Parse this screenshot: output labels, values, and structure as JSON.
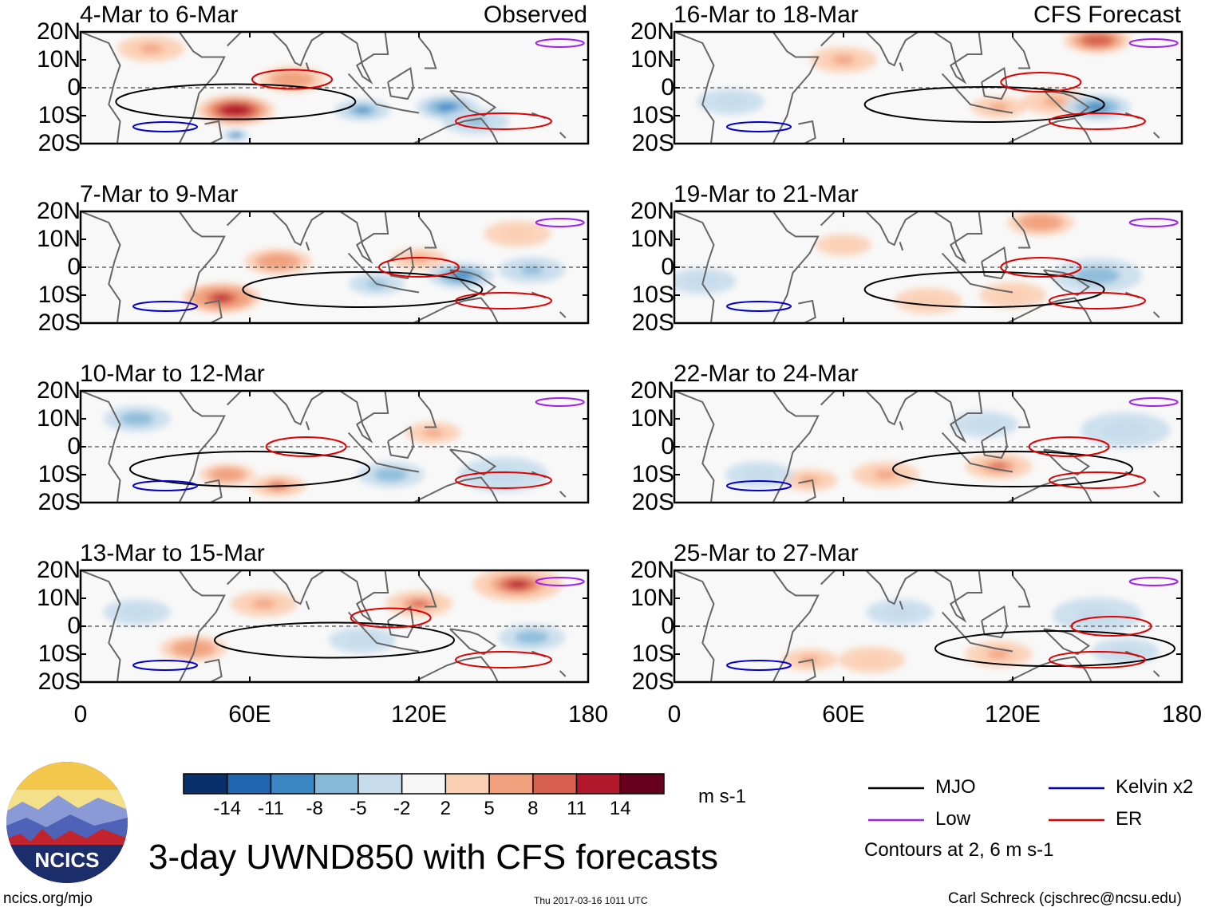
{
  "figure": {
    "title": "3-day UWND850 with CFS forecasts",
    "url": "ncics.org/mjo",
    "timestamp": "Thu 2017-03-16 1011 UTC",
    "author": "Carl Schreck (cjschrec@ncsu.edu)",
    "logo_text": "NCICS",
    "units": "m s-1",
    "contour_note": "Contours at 2, 6 m s-1"
  },
  "colorbar": {
    "labels": [
      "-14",
      "-11",
      "-8",
      "-5",
      "-2",
      "2",
      "5",
      "8",
      "11",
      "14"
    ],
    "colors": [
      "#08306b",
      "#1f66b0",
      "#3a87c4",
      "#86b8d8",
      "#c6dcec",
      "#f7f7f7",
      "#fbcfb3",
      "#f1a07d",
      "#d6604d",
      "#b2182b",
      "#67001f"
    ]
  },
  "legend": [
    {
      "label": "MJO",
      "color": "#000000"
    },
    {
      "label": "Kelvin x2",
      "color": "#0000cc"
    },
    {
      "label": "Low",
      "color": "#a020f0"
    },
    {
      "label": "ER",
      "color": "#e00000"
    }
  ],
  "chart_data": {
    "type": "heatmap",
    "variable": "850-hPa zonal wind anomaly (3-day mean)",
    "x_ticks": [
      "0",
      "60E",
      "120E",
      "180"
    ],
    "x_values": [
      0,
      60,
      120,
      180
    ],
    "y_ticks": [
      "20N",
      "10N",
      "0",
      "10S",
      "20S"
    ],
    "y_values": [
      20,
      10,
      0,
      -10,
      -20
    ],
    "xlim": [
      0,
      180
    ],
    "ylim": [
      -20,
      20
    ],
    "contour_levels": [
      2,
      6
    ],
    "panels": [
      {
        "period": "4-Mar to 6-Mar",
        "column": "Observed",
        "tag": "Observed"
      },
      {
        "period": "7-Mar to 9-Mar",
        "column": "Observed",
        "tag": ""
      },
      {
        "period": "10-Mar to 12-Mar",
        "column": "Observed",
        "tag": ""
      },
      {
        "period": "13-Mar to 15-Mar",
        "column": "Observed",
        "tag": ""
      },
      {
        "period": "16-Mar to 18-Mar",
        "column": "CFS Forecast",
        "tag": "CFS Forecast"
      },
      {
        "period": "19-Mar to 21-Mar",
        "column": "CFS Forecast",
        "tag": ""
      },
      {
        "period": "22-Mar to 24-Mar",
        "column": "CFS Forecast",
        "tag": ""
      },
      {
        "period": "25-Mar to 27-Mar",
        "column": "CFS Forecast",
        "tag": ""
      }
    ],
    "anomaly_blobs": [
      [
        [
          55,
          -8,
          3.5,
          14
        ],
        [
          75,
          3,
          3,
          8
        ],
        [
          100,
          -8,
          2.5,
          -9
        ],
        [
          130,
          -7,
          2.8,
          -8
        ],
        [
          55,
          -17,
          1.2,
          -12
        ],
        [
          25,
          14,
          3,
          6
        ],
        [
          140,
          -12,
          3,
          -6
        ]
      ],
      [
        [
          50,
          -11,
          3.5,
          13
        ],
        [
          70,
          2,
          3,
          8
        ],
        [
          105,
          -6,
          2.5,
          -7
        ],
        [
          135,
          -3,
          3,
          -8
        ],
        [
          160,
          -1,
          3,
          -6
        ],
        [
          120,
          3,
          2.5,
          6
        ],
        [
          155,
          12,
          3,
          5
        ]
      ],
      [
        [
          52,
          -10,
          2.5,
          8
        ],
        [
          70,
          -14,
          2.5,
          9
        ],
        [
          125,
          5,
          2.5,
          6
        ],
        [
          110,
          -10,
          3,
          -5
        ],
        [
          20,
          10,
          3,
          -5
        ],
        [
          150,
          -10,
          4,
          -4
        ]
      ],
      [
        [
          40,
          -8,
          3,
          8
        ],
        [
          65,
          8,
          3,
          6
        ],
        [
          120,
          8,
          3,
          10
        ],
        [
          155,
          15,
          4,
          12
        ],
        [
          100,
          -5,
          3,
          -4
        ],
        [
          160,
          -4,
          3,
          -5
        ],
        [
          20,
          5,
          3,
          -4
        ]
      ],
      [
        [
          150,
          17,
          3,
          11
        ],
        [
          115,
          -7,
          2.5,
          6
        ],
        [
          135,
          -5,
          3,
          6
        ],
        [
          150,
          -7,
          3,
          -8
        ],
        [
          60,
          10,
          3,
          6
        ],
        [
          20,
          -5,
          3,
          -3
        ]
      ],
      [
        [
          130,
          16,
          3,
          8
        ],
        [
          90,
          -12,
          3,
          5
        ],
        [
          120,
          -10,
          3,
          4
        ],
        [
          60,
          8,
          2.5,
          5
        ],
        [
          150,
          -3,
          4,
          -5
        ],
        [
          10,
          -5,
          3,
          -3
        ]
      ],
      [
        [
          115,
          -7,
          3,
          10
        ],
        [
          75,
          -10,
          3,
          6
        ],
        [
          48,
          -12,
          2.5,
          7
        ],
        [
          110,
          8,
          3,
          -4
        ],
        [
          160,
          6,
          4,
          -3
        ],
        [
          30,
          -10,
          3,
          -2
        ]
      ],
      [
        [
          115,
          -10,
          3,
          6
        ],
        [
          48,
          -12,
          2.5,
          7
        ],
        [
          70,
          -12,
          3,
          4
        ],
        [
          80,
          5,
          3,
          -4
        ],
        [
          150,
          4,
          4,
          -3
        ],
        [
          160,
          -9,
          3,
          -3
        ]
      ]
    ]
  }
}
